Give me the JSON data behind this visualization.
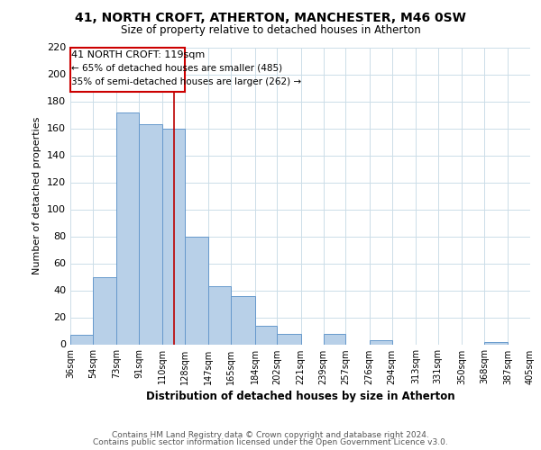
{
  "title": "41, NORTH CROFT, ATHERTON, MANCHESTER, M46 0SW",
  "subtitle": "Size of property relative to detached houses in Atherton",
  "xlabel": "Distribution of detached houses by size in Atherton",
  "ylabel": "Number of detached properties",
  "footer_lines": [
    "Contains HM Land Registry data © Crown copyright and database right 2024.",
    "Contains public sector information licensed under the Open Government Licence v3.0."
  ],
  "bar_edges": [
    36,
    54,
    73,
    91,
    110,
    128,
    147,
    165,
    184,
    202,
    221,
    239,
    257,
    276,
    294,
    313,
    331,
    350,
    368,
    387,
    405
  ],
  "bar_heights": [
    7,
    50,
    172,
    163,
    160,
    80,
    43,
    36,
    14,
    8,
    0,
    8,
    0,
    3,
    0,
    0,
    0,
    0,
    2,
    0,
    2
  ],
  "bar_color": "#b8d0e8",
  "bar_edge_color": "#6699cc",
  "property_line_x": 119,
  "property_line_color": "#bb0000",
  "annotation_line1": "41 NORTH CROFT: 119sqm",
  "annotation_line2": "← 65% of detached houses are smaller (485)",
  "annotation_line3": "35% of semi-detached houses are larger (262) →",
  "ylim": [
    0,
    220
  ],
  "yticks": [
    0,
    20,
    40,
    60,
    80,
    100,
    120,
    140,
    160,
    180,
    200,
    220
  ],
  "tick_labels": [
    "36sqm",
    "54sqm",
    "73sqm",
    "91sqm",
    "110sqm",
    "128sqm",
    "147sqm",
    "165sqm",
    "184sqm",
    "202sqm",
    "221sqm",
    "239sqm",
    "257sqm",
    "276sqm",
    "294sqm",
    "313sqm",
    "331sqm",
    "350sqm",
    "368sqm",
    "387sqm",
    "405sqm"
  ],
  "background_color": "#ffffff",
  "grid_color": "#ccdde8"
}
